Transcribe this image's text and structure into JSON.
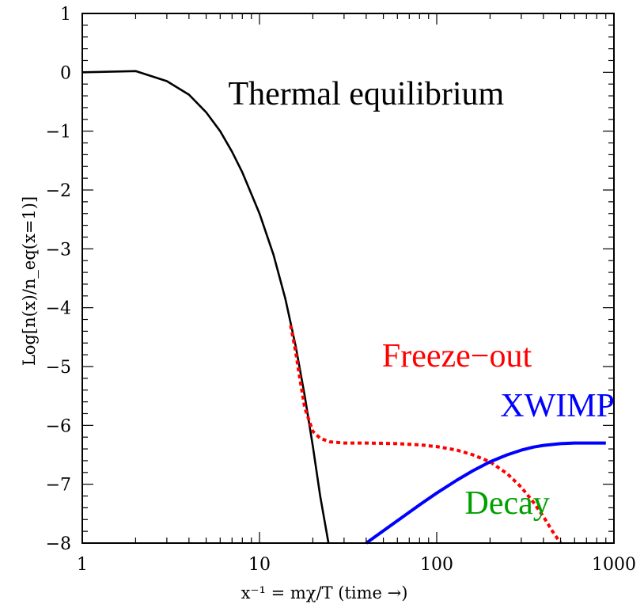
{
  "chart_data": {
    "type": "line",
    "xscale": "log",
    "xlim": [
      1,
      1000
    ],
    "ylim": [
      -8,
      1
    ],
    "grid": false,
    "xticks": [
      {
        "value": 1,
        "label": "1"
      },
      {
        "value": 10,
        "label": "10"
      },
      {
        "value": 100,
        "label": "100"
      },
      {
        "value": 1000,
        "label": "1000"
      }
    ],
    "yticks": [
      {
        "value": 1,
        "label": "1"
      },
      {
        "value": 0,
        "label": "0"
      },
      {
        "value": -1,
        "label": "−1"
      },
      {
        "value": -2,
        "label": "−2"
      },
      {
        "value": -3,
        "label": "−3"
      },
      {
        "value": -4,
        "label": "−4"
      },
      {
        "value": -5,
        "label": "−5"
      },
      {
        "value": -6,
        "label": "−6"
      },
      {
        "value": -7,
        "label": "−7"
      },
      {
        "value": -8,
        "label": "−8"
      }
    ],
    "xlabel": "x⁻¹ = mχ/T    (time →)",
    "ylabel": "Log[n(x)/n_eq(x=1)]",
    "annotations": [
      {
        "text": "Thermal equilibrium",
        "x": 40,
        "y": -0.55,
        "color": "#000000"
      },
      {
        "text": "Freeze−out",
        "x": 130,
        "y": -5.0,
        "color": "#ff0000"
      },
      {
        "text": "XWIMP",
        "x": 480,
        "y": -5.85,
        "color": "#0000ff"
      },
      {
        "text": "Decay",
        "x": 250,
        "y": -7.5,
        "color": "#00a000"
      }
    ],
    "series": [
      {
        "color": "#000000",
        "style": "solid",
        "x": [
          1,
          2,
          3,
          4,
          5,
          6,
          7,
          8,
          10,
          12,
          14,
          16,
          18,
          20,
          22,
          24.5
        ],
        "y": [
          0,
          0.02,
          -0.15,
          -0.38,
          -0.68,
          -1.0,
          -1.35,
          -1.7,
          -2.4,
          -3.1,
          -3.85,
          -4.65,
          -5.5,
          -6.35,
          -7.2,
          -8.0
        ]
      },
      {
        "color": "#ff0000",
        "style": "dotted",
        "x": [
          15,
          16,
          17,
          18,
          20,
          22,
          25,
          30,
          40,
          60,
          80,
          100,
          130,
          160,
          200,
          250,
          300,
          350,
          400,
          450,
          500
        ],
        "y": [
          -4.3,
          -4.75,
          -5.25,
          -5.7,
          -6.1,
          -6.22,
          -6.28,
          -6.3,
          -6.3,
          -6.31,
          -6.33,
          -6.36,
          -6.42,
          -6.5,
          -6.62,
          -6.82,
          -7.05,
          -7.3,
          -7.55,
          -7.8,
          -8.05
        ]
      },
      {
        "color": "#0000ff",
        "style": "solid",
        "x": [
          40,
          60,
          80,
          100,
          130,
          160,
          200,
          250,
          300,
          350,
          400,
          500,
          600,
          700,
          800,
          900
        ],
        "y": [
          -8.0,
          -7.62,
          -7.35,
          -7.15,
          -6.93,
          -6.77,
          -6.62,
          -6.5,
          -6.42,
          -6.37,
          -6.34,
          -6.31,
          -6.3,
          -6.3,
          -6.3,
          -6.3
        ]
      }
    ]
  }
}
